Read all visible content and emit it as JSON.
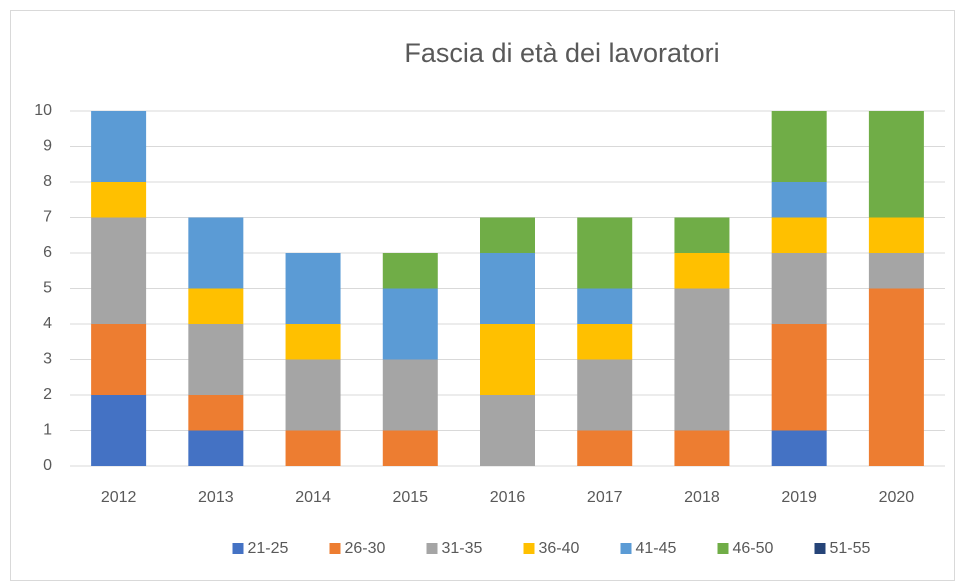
{
  "chart_data": {
    "type": "stacked_bar",
    "title": "Fascia di età dei lavoratori",
    "categories": [
      "2012",
      "2013",
      "2014",
      "2015",
      "2016",
      "2017",
      "2018",
      "2019",
      "2020"
    ],
    "series": [
      {
        "name": "21-25",
        "color": "#4472c4",
        "values": [
          2,
          1,
          0,
          0,
          0,
          0,
          0,
          1,
          0
        ]
      },
      {
        "name": "26-30",
        "color": "#ed7d31",
        "values": [
          2,
          1,
          1,
          1,
          0,
          1,
          1,
          3,
          5
        ]
      },
      {
        "name": "31-35",
        "color": "#a5a5a5",
        "values": [
          3,
          2,
          2,
          2,
          2,
          2,
          4,
          2,
          1
        ]
      },
      {
        "name": "36-40",
        "color": "#ffc000",
        "values": [
          1,
          1,
          1,
          0,
          2,
          1,
          1,
          1,
          1
        ]
      },
      {
        "name": "41-45",
        "color": "#5b9bd5",
        "values": [
          2,
          2,
          2,
          2,
          2,
          1,
          0,
          1,
          0
        ]
      },
      {
        "name": "46-50",
        "color": "#70ad47",
        "values": [
          0,
          0,
          0,
          1,
          1,
          2,
          1,
          2,
          3
        ]
      },
      {
        "name": "51-55",
        "color": "#264478",
        "values": [
          0,
          0,
          0,
          0,
          0,
          0,
          0,
          0,
          0
        ]
      }
    ],
    "ylim": [
      0,
      10
    ],
    "yticks": [
      0,
      1,
      2,
      3,
      4,
      5,
      6,
      7,
      8,
      9,
      10
    ],
    "grid": true,
    "legend": "bottom"
  }
}
